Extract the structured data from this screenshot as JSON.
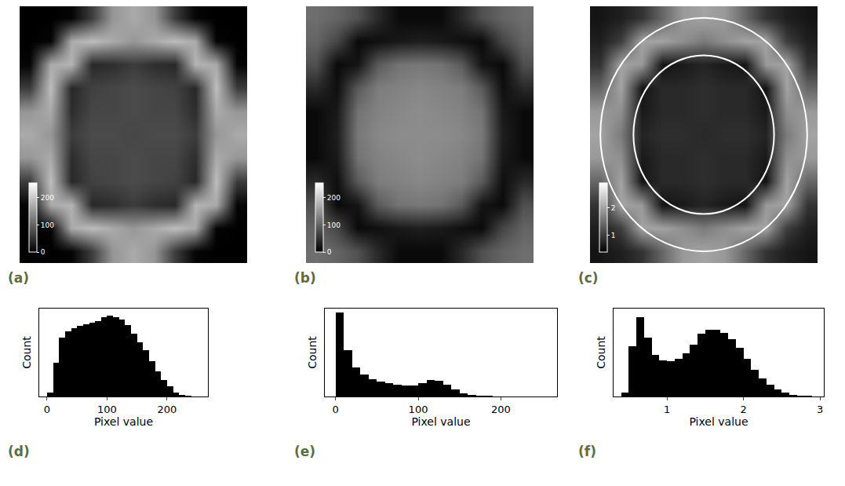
{
  "chart_data": [
    {
      "type": "heatmap",
      "label": "(a)",
      "tick_labels": false,
      "xlim": [
        -0.5,
        10.5
      ],
      "ylim": [
        -0.5,
        10.5
      ],
      "cells": [
        [
          0,
          0,
          5,
          60,
          150,
          170,
          150,
          60,
          5,
          0,
          0
        ],
        [
          0,
          5,
          170,
          190,
          170,
          150,
          170,
          190,
          170,
          5,
          0
        ],
        [
          5,
          170,
          180,
          40,
          45,
          60,
          45,
          40,
          180,
          170,
          5
        ],
        [
          60,
          190,
          40,
          65,
          70,
          75,
          70,
          65,
          40,
          190,
          60
        ],
        [
          150,
          170,
          45,
          70,
          70,
          75,
          70,
          70,
          45,
          170,
          150
        ],
        [
          170,
          150,
          60,
          75,
          75,
          70,
          75,
          75,
          60,
          150,
          170
        ],
        [
          150,
          170,
          45,
          70,
          70,
          75,
          70,
          70,
          45,
          170,
          150
        ],
        [
          60,
          190,
          40,
          65,
          70,
          75,
          70,
          65,
          40,
          190,
          60
        ],
        [
          5,
          170,
          180,
          40,
          45,
          60,
          45,
          40,
          180,
          170,
          5
        ],
        [
          0,
          5,
          170,
          190,
          170,
          150,
          170,
          190,
          170,
          5,
          0
        ],
        [
          0,
          0,
          5,
          60,
          150,
          170,
          150,
          60,
          5,
          0,
          0
        ]
      ],
      "colorbar": {
        "range": [
          0,
          255
        ],
        "ticks": [
          0,
          100,
          200
        ]
      }
    },
    {
      "type": "heatmap",
      "label": "(b)",
      "tick_labels": false,
      "xlim": [
        -0.5,
        10.5
      ],
      "ylim": [
        -0.5,
        10.5
      ],
      "cells": [
        [
          110,
          100,
          80,
          40,
          10,
          10,
          10,
          40,
          80,
          100,
          110
        ],
        [
          100,
          70,
          10,
          15,
          25,
          30,
          25,
          15,
          10,
          70,
          100
        ],
        [
          80,
          10,
          20,
          90,
          115,
          120,
          115,
          90,
          20,
          10,
          80
        ],
        [
          40,
          15,
          90,
          125,
          130,
          135,
          130,
          125,
          90,
          15,
          40
        ],
        [
          10,
          25,
          115,
          130,
          135,
          140,
          135,
          130,
          115,
          25,
          10
        ],
        [
          10,
          30,
          120,
          135,
          140,
          140,
          140,
          135,
          120,
          30,
          10
        ],
        [
          10,
          25,
          115,
          130,
          135,
          140,
          135,
          130,
          115,
          25,
          10
        ],
        [
          40,
          15,
          90,
          125,
          130,
          135,
          130,
          125,
          90,
          15,
          40
        ],
        [
          80,
          10,
          20,
          90,
          115,
          120,
          115,
          90,
          20,
          10,
          80
        ],
        [
          100,
          70,
          10,
          15,
          25,
          30,
          25,
          15,
          10,
          70,
          100
        ],
        [
          110,
          100,
          80,
          40,
          10,
          10,
          10,
          40,
          80,
          100,
          110
        ]
      ],
      "colorbar": {
        "range": [
          0,
          255
        ],
        "ticks": [
          0,
          100,
          200
        ]
      }
    },
    {
      "type": "heatmap",
      "label": "(c)",
      "tick_labels": false,
      "xlim": [
        -0.5,
        10.5
      ],
      "ylim": [
        -0.5,
        10.5
      ],
      "cells": [
        [
          0.6,
          0.7,
          0.9,
          1.4,
          1.9,
          2.0,
          1.9,
          1.4,
          0.9,
          0.7,
          0.6
        ],
        [
          0.7,
          1.0,
          2.0,
          2.0,
          1.8,
          1.6,
          1.8,
          2.0,
          2.0,
          1.0,
          0.7
        ],
        [
          0.9,
          2.0,
          1.9,
          0.6,
          0.65,
          0.75,
          0.65,
          0.6,
          1.9,
          2.0,
          0.9
        ],
        [
          1.4,
          2.0,
          0.6,
          0.8,
          0.8,
          0.85,
          0.8,
          0.8,
          0.6,
          2.0,
          1.4
        ],
        [
          1.9,
          1.8,
          0.65,
          0.8,
          0.8,
          0.85,
          0.8,
          0.8,
          0.65,
          1.8,
          1.9
        ],
        [
          2.0,
          1.6,
          0.75,
          0.85,
          0.85,
          0.8,
          0.85,
          0.85,
          0.75,
          1.6,
          2.0
        ],
        [
          1.9,
          1.8,
          0.65,
          0.8,
          0.8,
          0.85,
          0.8,
          0.8,
          0.65,
          1.8,
          1.9
        ],
        [
          1.4,
          2.0,
          0.6,
          0.8,
          0.8,
          0.85,
          0.8,
          0.8,
          0.6,
          2.0,
          1.4
        ],
        [
          0.9,
          2.0,
          1.9,
          0.6,
          0.65,
          0.75,
          0.65,
          0.6,
          1.9,
          2.0,
          0.9
        ],
        [
          0.7,
          1.0,
          2.0,
          2.0,
          1.8,
          1.6,
          1.8,
          2.0,
          2.0,
          1.0,
          0.7
        ],
        [
          0.6,
          0.7,
          0.9,
          1.4,
          1.9,
          2.0,
          1.9,
          1.4,
          0.9,
          0.7,
          0.6
        ]
      ],
      "colorbar": {
        "range": [
          0.4,
          2.9
        ],
        "ticks": [
          1,
          2
        ]
      },
      "circles": [
        {
          "center": [
            5,
            5
          ],
          "radius": 3.4
        },
        {
          "center": [
            5,
            5
          ],
          "radius": 5.0
        }
      ]
    },
    {
      "type": "histogram",
      "label": "(d)",
      "x_label": "Pixel value",
      "y_label": "Count",
      "tick_labels": "x",
      "color": "#000000",
      "bins": [
        0,
        10,
        20,
        30,
        40,
        50,
        60,
        70,
        80,
        90,
        100,
        110,
        120,
        130,
        140,
        150,
        160,
        170,
        180,
        190,
        200,
        210,
        220,
        230,
        240,
        250
      ],
      "values": [
        5,
        40,
        70,
        78,
        82,
        84,
        86,
        88,
        90,
        95,
        97,
        95,
        92,
        85,
        75,
        65,
        55,
        42,
        30,
        20,
        12,
        5,
        2,
        1,
        0
      ],
      "xlim": [
        -13,
        268
      ],
      "xticks": [
        0,
        100,
        200
      ],
      "ylim": [
        0,
        105
      ]
    },
    {
      "type": "histogram",
      "label": "(e)",
      "x_label": "Pixel value",
      "y_label": "Count",
      "tick_labels": "x",
      "color": "#000000",
      "bins": [
        0,
        10,
        20,
        30,
        40,
        50,
        60,
        70,
        80,
        90,
        100,
        110,
        120,
        130,
        140,
        150,
        160,
        170,
        180,
        190,
        200,
        210,
        220,
        230,
        240,
        250
      ],
      "values": [
        100,
        55,
        35,
        26,
        21,
        18,
        16,
        14,
        13,
        13,
        16,
        20,
        19,
        14,
        8,
        4,
        2,
        1,
        0.5,
        0,
        0,
        0,
        0,
        0,
        0
      ],
      "xlim": [
        -13,
        268
      ],
      "xticks": [
        0,
        100,
        200
      ],
      "ylim": [
        0,
        105
      ]
    },
    {
      "type": "histogram",
      "label": "(f)",
      "x_label": "Pixel value",
      "y_label": "Count",
      "tick_labels": "x",
      "color": "#000000",
      "bins": [
        0.4,
        0.5,
        0.6,
        0.7,
        0.8,
        0.9,
        1.0,
        1.1,
        1.2,
        1.3,
        1.4,
        1.5,
        1.6,
        1.7,
        1.8,
        1.9,
        2.0,
        2.1,
        2.2,
        2.3,
        2.4,
        2.5,
        2.6,
        2.7,
        2.8,
        2.9
      ],
      "values": [
        5,
        60,
        95,
        70,
        50,
        43,
        42,
        45,
        52,
        62,
        75,
        80,
        80,
        76,
        68,
        58,
        45,
        32,
        22,
        14,
        8,
        5,
        2,
        1,
        0.5
      ],
      "xlim": [
        0.3,
        3.05
      ],
      "xticks": [
        1,
        2,
        3
      ],
      "ylim": [
        0,
        105
      ]
    }
  ]
}
